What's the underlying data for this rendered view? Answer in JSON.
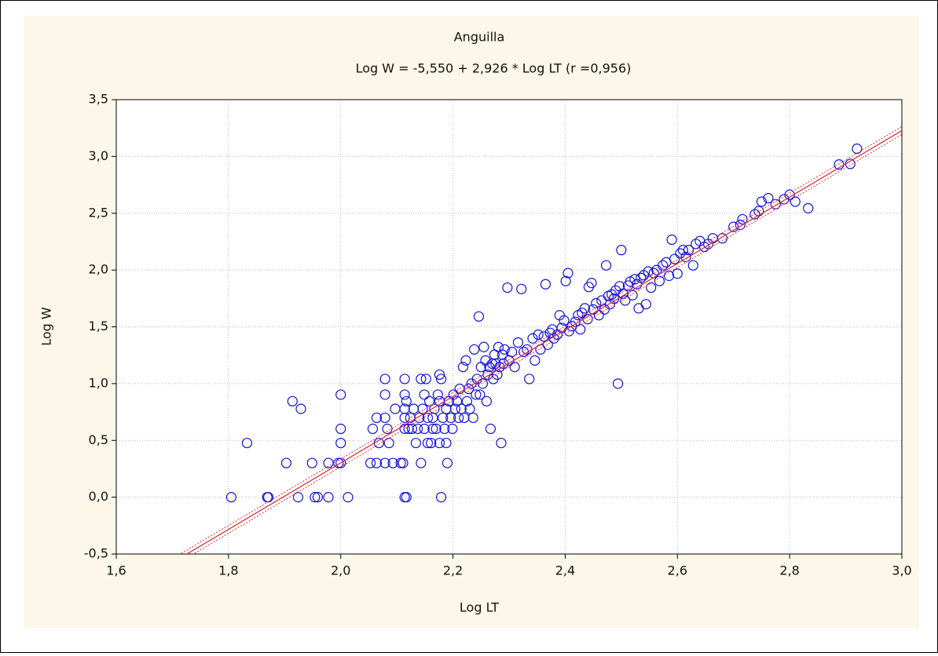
{
  "chart_data": {
    "type": "scatter",
    "title": "Anguilla",
    "subtitle": "Log W = -5,550 + 2,926 * Log LT (r =0,956)",
    "x_label": "Log LT",
    "y_label": "Log W",
    "xlim": [
      1.6,
      3.0
    ],
    "xticks": [
      {
        "value": 1.6,
        "label": "1,6"
      },
      {
        "value": 1.8,
        "label": "1,8"
      },
      {
        "value": 2.0,
        "label": "2,0"
      },
      {
        "value": 2.2,
        "label": "2,2"
      },
      {
        "value": 2.4,
        "label": "2,4"
      },
      {
        "value": 2.6,
        "label": "2,6"
      },
      {
        "value": 2.8,
        "label": "2,8"
      },
      {
        "value": 3.0,
        "label": "3,0"
      }
    ],
    "ylim": [
      -0.5,
      3.5
    ],
    "yticks": [
      {
        "value": -0.5,
        "label": "-0,5"
      },
      {
        "value": 0,
        "label": "0,0"
      },
      {
        "value": 0.5,
        "label": "0,5"
      },
      {
        "value": 1.0,
        "label": "1,0"
      },
      {
        "value": 1.5,
        "label": "1,5"
      },
      {
        "value": 2.0,
        "label": "2,0"
      },
      {
        "value": 2.5,
        "label": "2,5"
      },
      {
        "value": 3.0,
        "label": "3,0"
      },
      {
        "value": 3.5,
        "label": "3,5"
      }
    ],
    "grid": true,
    "fit": {
      "intercept": -5.55,
      "slope": 2.926,
      "color": "#e0303a"
    },
    "x": [
      1.805,
      1.833,
      1.869,
      1.871,
      1.903,
      1.914,
      1.924,
      1.929,
      1.949,
      1.954,
      1.959,
      1.978,
      1.978,
      1.996,
      2.0,
      2.0,
      2.0,
      2.0,
      2.013,
      2.053,
      2.057,
      2.064,
      2.064,
      2.068,
      2.079,
      2.079,
      2.079,
      2.079,
      2.083,
      2.086,
      2.093,
      2.097,
      2.107,
      2.111,
      2.114,
      2.114,
      2.117,
      2.114,
      2.114,
      2.114,
      2.114,
      2.117,
      2.121,
      2.124,
      2.127,
      2.13,
      2.134,
      2.137,
      2.14,
      2.143,
      2.143,
      2.146,
      2.149,
      2.149,
      2.152,
      2.155,
      2.155,
      2.158,
      2.161,
      2.164,
      2.164,
      2.167,
      2.17,
      2.173,
      2.176,
      2.176,
      2.176,
      2.179,
      2.179,
      2.182,
      2.185,
      2.188,
      2.188,
      2.19,
      2.193,
      2.196,
      2.199,
      2.201,
      2.204,
      2.207,
      2.21,
      2.212,
      2.215,
      2.218,
      2.22,
      2.223,
      2.225,
      2.228,
      2.23,
      2.233,
      2.236,
      2.238,
      2.241,
      2.243,
      2.246,
      2.248,
      2.25,
      2.253,
      2.255,
      2.258,
      2.26,
      2.262,
      2.265,
      2.267,
      2.27,
      2.272,
      2.274,
      2.276,
      2.279,
      2.281,
      2.283,
      2.286,
      2.288,
      2.29,
      2.292,
      2.297,
      2.3,
      2.305,
      2.31,
      2.316,
      2.322,
      2.326,
      2.332,
      2.336,
      2.342,
      2.346,
      2.352,
      2.356,
      2.362,
      2.365,
      2.369,
      2.373,
      2.377,
      2.38,
      2.386,
      2.39,
      2.394,
      2.398,
      2.401,
      2.405,
      2.407,
      2.412,
      2.418,
      2.423,
      2.427,
      2.43,
      2.435,
      2.44,
      2.442,
      2.447,
      2.45,
      2.455,
      2.46,
      2.465,
      2.47,
      2.473,
      2.477,
      2.48,
      2.483,
      2.487,
      2.49,
      2.494,
      2.497,
      2.5,
      2.503,
      2.507,
      2.512,
      2.516,
      2.52,
      2.524,
      2.528,
      2.531,
      2.535,
      2.54,
      2.544,
      2.548,
      2.553,
      2.558,
      2.563,
      2.568,
      2.574,
      2.58,
      2.585,
      2.59,
      2.595,
      2.6,
      2.605,
      2.61,
      2.615,
      2.62,
      2.628,
      2.633,
      2.64,
      2.648,
      2.655,
      2.663,
      2.68,
      2.7,
      2.712,
      2.716,
      2.738,
      2.745,
      2.75,
      2.762,
      2.775,
      2.79,
      2.8,
      2.81,
      2.833,
      2.888,
      2.908,
      2.92
    ],
    "series": [
      {
        "color": "#1010e0",
        "values": [
          0,
          0.477,
          0,
          0,
          0.301,
          0.845,
          0,
          0.778,
          0.301,
          0,
          0,
          0.301,
          0,
          0.301,
          0.903,
          0.602,
          0.477,
          0.301,
          0,
          0.301,
          0.602,
          0.301,
          0.699,
          0.477,
          0.301,
          1.041,
          0.903,
          0.699,
          0.602,
          0.477,
          0.301,
          0.778,
          0.301,
          0.301,
          0.602,
          0,
          0,
          0.778,
          1.041,
          0.903,
          0.699,
          0.845,
          0.602,
          0.699,
          0.602,
          0.778,
          0.477,
          0.602,
          0.699,
          0.301,
          1.041,
          0.778,
          0.903,
          0.602,
          1.041,
          0.477,
          0.699,
          0.845,
          0.477,
          0.602,
          0.699,
          0.778,
          0.602,
          0.903,
          1.079,
          0.845,
          0.477,
          1.041,
          0,
          0.699,
          0.602,
          0.778,
          0.477,
          0.301,
          0.845,
          0.699,
          0.602,
          0.903,
          0.778,
          0.845,
          0.699,
          0.954,
          0.778,
          1.146,
          0.699,
          1.204,
          0.845,
          0.954,
          0.778,
          1.0,
          0.699,
          1.301,
          0.903,
          1.041,
          1.591,
          0.903,
          1.146,
          1.0,
          1.322,
          1.204,
          0.845,
          1.079,
          1.146,
          0.602,
          1.176,
          1.041,
          1.255,
          1.176,
          1.079,
          1.322,
          1.146,
          0.477,
          1.255,
          1.176,
          1.301,
          1.845,
          1.204,
          1.279,
          1.146,
          1.362,
          1.833,
          1.279,
          1.301,
          1.041,
          1.398,
          1.204,
          1.431,
          1.301,
          1.415,
          1.875,
          1.342,
          1.447,
          1.477,
          1.398,
          1.431,
          1.602,
          1.491,
          1.556,
          1.903,
          1.973,
          1.462,
          1.505,
          1.544,
          1.602,
          1.477,
          1.623,
          1.663,
          1.568,
          1.851,
          1.886,
          1.653,
          1.708,
          1.602,
          1.732,
          1.653,
          2.041,
          1.771,
          1.699,
          1.785,
          1.748,
          1.82,
          1.0,
          1.857,
          2.176,
          1.792,
          1.732,
          1.863,
          1.898,
          1.778,
          1.919,
          1.875,
          1.663,
          1.93,
          1.954,
          1.699,
          1.987,
          1.845,
          1.973,
          2.0,
          1.903,
          2.041,
          2.068,
          1.949,
          2.267,
          2.097,
          1.968,
          2.146,
          2.176,
          2.114,
          2.176,
          2.041,
          2.23,
          2.255,
          2.204,
          2.23,
          2.279,
          2.279,
          2.38,
          2.398,
          2.447,
          2.491,
          2.519,
          2.602,
          2.633,
          2.58,
          2.623,
          2.663,
          2.602,
          2.544,
          2.929,
          2.934,
          3.068
        ]
      }
    ]
  }
}
